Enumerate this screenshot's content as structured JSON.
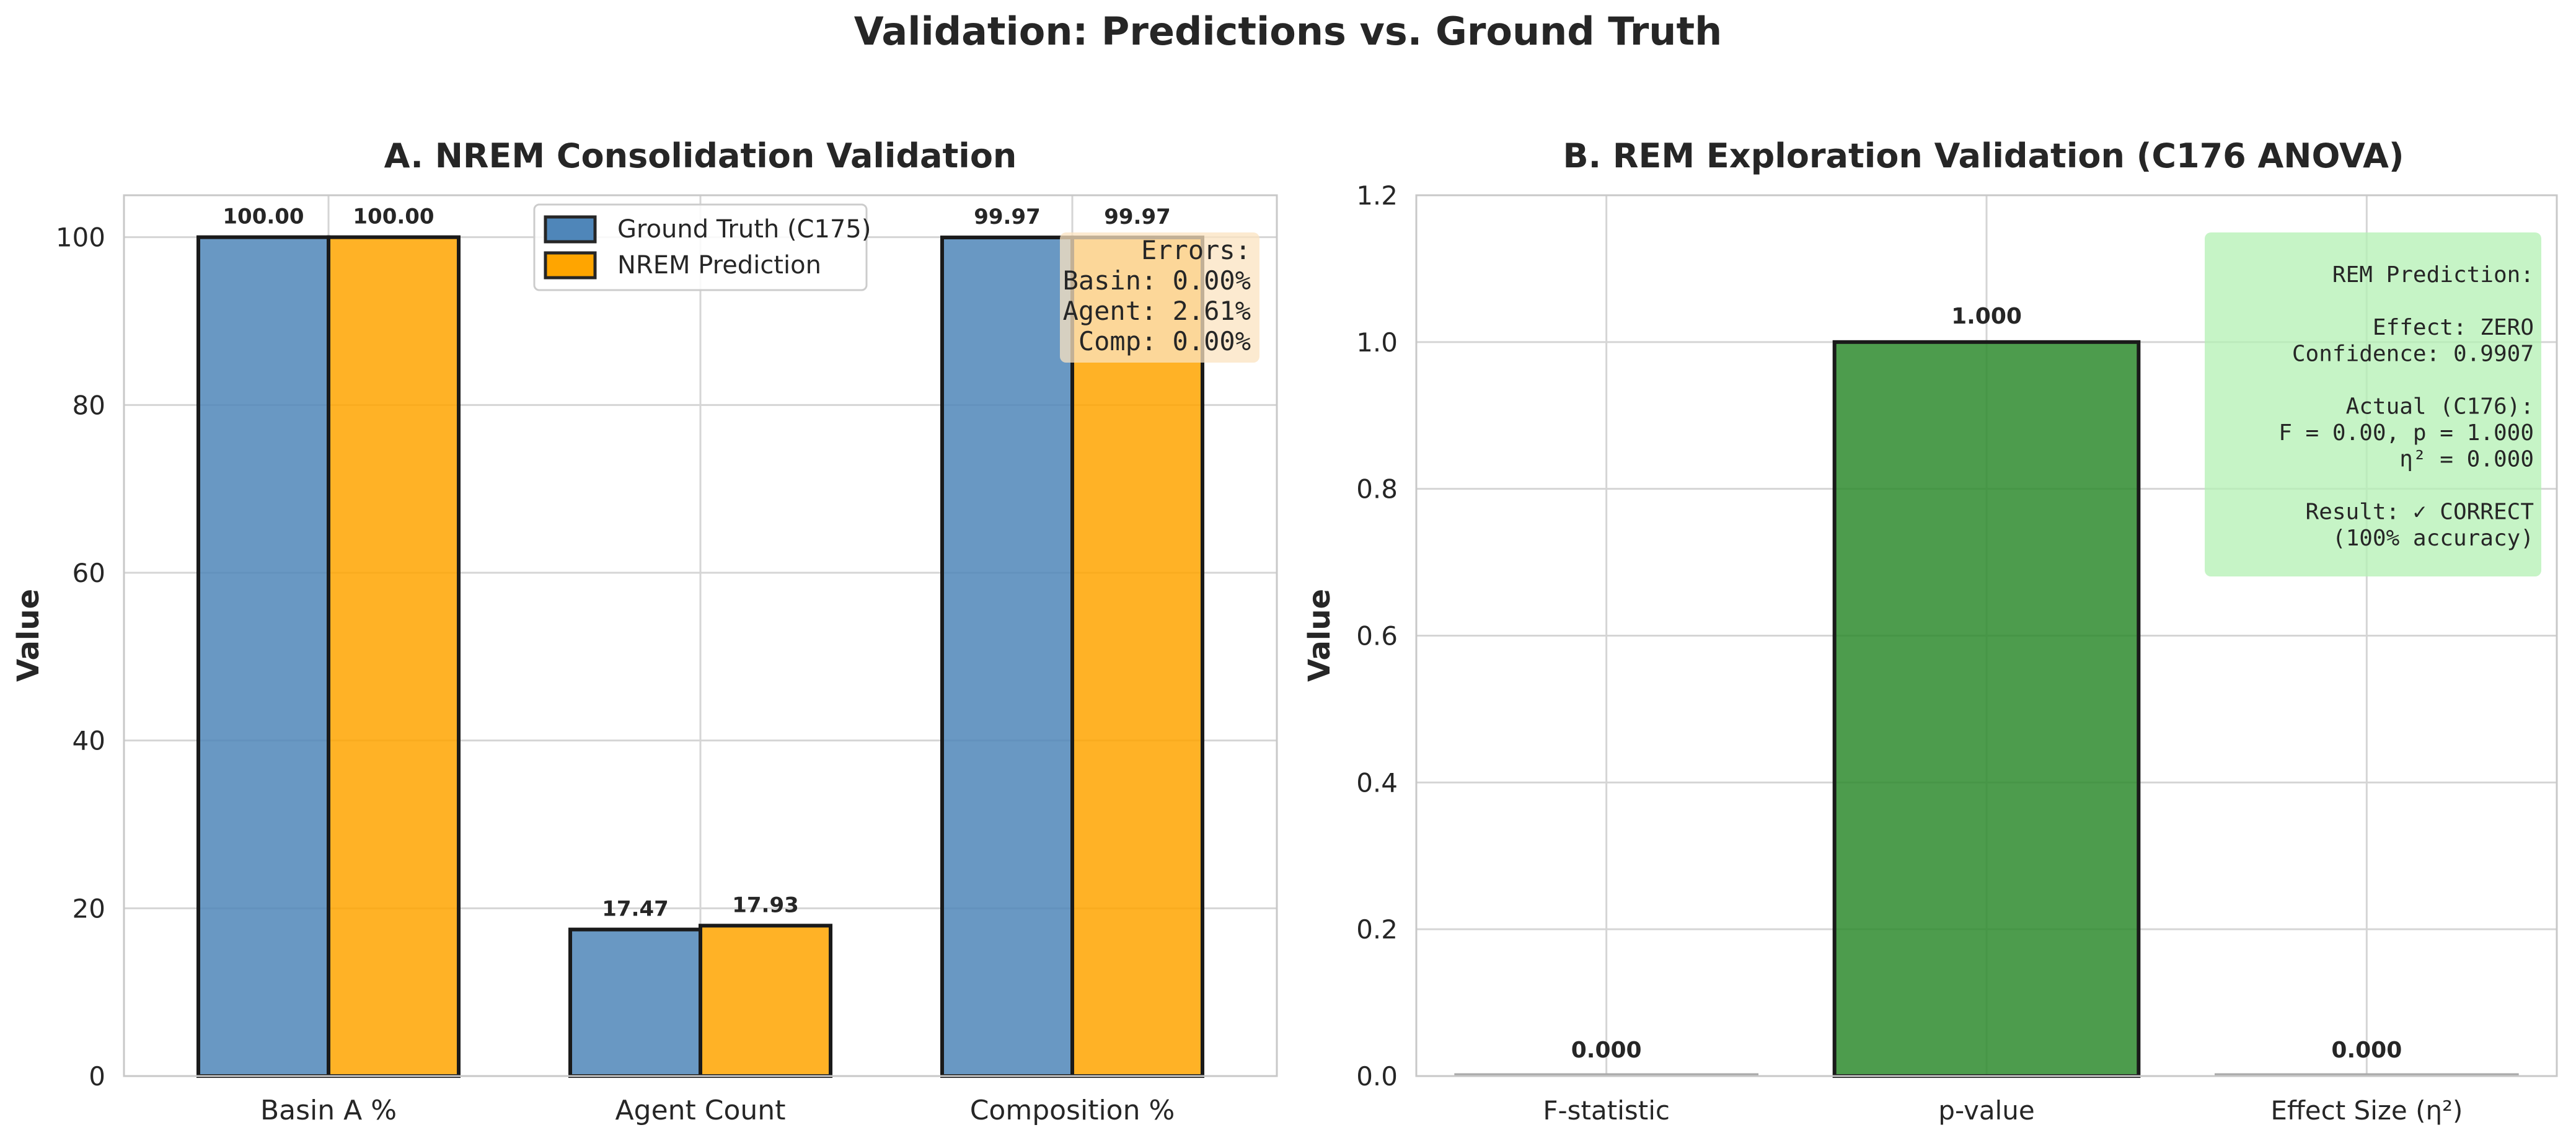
{
  "figure_title": "Validation: Predictions vs. Ground Truth",
  "colors": {
    "ground_truth": "#4f86b9",
    "prediction": "#ffa500",
    "p_value_bar": "#2e8b2e",
    "grey_bar": "#a9a9a9",
    "errors_box": "#fbe3c0",
    "rem_box": "#b3f0b3"
  },
  "chart_data": [
    {
      "type": "bar",
      "title": "A. NREM Consolidation Validation",
      "xlabel": "",
      "ylabel": "Value",
      "ylim": [
        0,
        105
      ],
      "yticks": [
        0,
        20,
        40,
        60,
        80,
        100
      ],
      "categories": [
        "Basin A %",
        "Agent Count",
        "Composition %"
      ],
      "series": [
        {
          "name": "Ground Truth (C175)",
          "values": [
            100.0,
            17.47,
            99.97
          ],
          "labels": [
            "100.00",
            "17.47",
            "99.97"
          ]
        },
        {
          "name": "NREM Prediction",
          "values": [
            100.0,
            17.93,
            99.97
          ],
          "labels": [
            "100.00",
            "17.93",
            "99.97"
          ]
        }
      ],
      "legend_position": "top-center",
      "grid": true,
      "annotation": {
        "lines": [
          "Errors:",
          "Basin: 0.00%",
          "Agent: 2.61%",
          "Comp: 0.00%"
        ]
      }
    },
    {
      "type": "bar",
      "title": "B. REM Exploration Validation (C176 ANOVA)",
      "xlabel": "",
      "ylabel": "Value",
      "ylim": [
        0,
        1.2
      ],
      "yticks": [
        "0.0",
        "0.2",
        "0.4",
        "0.6",
        "0.8",
        "1.0",
        "1.2"
      ],
      "categories": [
        "F-statistic",
        "p-value",
        "Effect Size (η²)"
      ],
      "values": [
        0.0,
        1.0,
        0.0
      ],
      "labels": [
        "0.000",
        "1.000",
        "0.000"
      ],
      "grid": true,
      "annotation": {
        "lines": [
          "REM Prediction:",
          "",
          "Effect: ZERO",
          "Confidence: 0.9907",
          "",
          "Actual (C176):",
          "F = 0.00, p = 1.000",
          "η² = 0.000",
          "",
          "Result: ✓ CORRECT",
          "(100% accuracy)"
        ]
      }
    }
  ]
}
